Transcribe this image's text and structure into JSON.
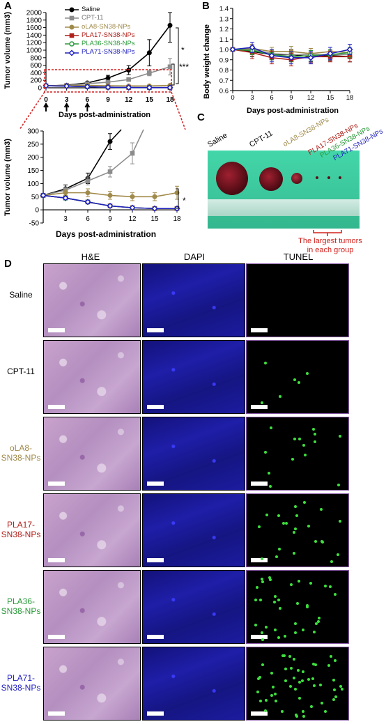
{
  "panels": {
    "A": "A",
    "B": "B",
    "C": "C",
    "D": "D"
  },
  "panelA": {
    "legend": [
      {
        "name": "Saline",
        "color": "#000000",
        "marker": "circle"
      },
      {
        "name": "CPT-11",
        "color": "#8c8c8c",
        "marker": "square"
      },
      {
        "name": "oLA8-SN38-NPs",
        "color": "#a08a4a",
        "marker": "circle"
      },
      {
        "name": "PLA17-SN38-NPs",
        "color": "#b0201a",
        "marker": "square"
      },
      {
        "name": "PLA36-SN38-NPs",
        "color": "#2a9a3a",
        "marker": "circle-open"
      },
      {
        "name": "PLA71-SN38-NPs",
        "color": "#2020c0",
        "marker": "diamond-open"
      }
    ],
    "ylabel": "Tumor volume (mm3)",
    "xlabel": "Days post-administration",
    "sig_top": "*",
    "sig_mid": "***",
    "sig_bottom": "*"
  },
  "panelB": {
    "ylabel": "Body weight change",
    "xlabel": "Days post-administration"
  },
  "panelC": {
    "labels": [
      "Saline",
      "CPT-11",
      "oLA8-SN38-NPs",
      "PLA17-SN38-NPs",
      "PLA36-SN38-NPs",
      "PLA71-SN38-NPs"
    ],
    "label_colors": [
      "#000000",
      "#000000",
      "#a08a4a",
      "#b0201a",
      "#2a9a3a",
      "#2020c0"
    ],
    "caption_line1": "The largest tumors",
    "caption_line2": "in each group",
    "caption_color": "#d0201a"
  },
  "panelD": {
    "columns": [
      "H&E",
      "DAPI",
      "TUNEL"
    ],
    "rows": [
      {
        "line1": "Saline",
        "line2": "",
        "color": "#000000"
      },
      {
        "line1": "CPT-11",
        "line2": "",
        "color": "#000000"
      },
      {
        "line1": "oLA8-",
        "line2": "SN38-NPs",
        "color": "#a08a4a"
      },
      {
        "line1": "PLA17-",
        "line2": "SN38-NPs",
        "color": "#b0201a"
      },
      {
        "line1": "PLA36-",
        "line2": "SN38-NPs",
        "color": "#2a9a3a"
      },
      {
        "line1": "PLA71-",
        "line2": "SN38-NPs",
        "color": "#2020c0"
      }
    ]
  },
  "chart_data": [
    {
      "type": "line",
      "title": "",
      "xlabel": "Days post-administration",
      "ylabel": "Tumor volume (mm3)",
      "x": [
        0,
        3,
        6,
        9,
        12,
        15,
        18
      ],
      "xlim": [
        0,
        18
      ],
      "ylim": [
        0,
        2000
      ],
      "yticks": [
        0,
        200,
        400,
        600,
        800,
        1000,
        1200,
        1400,
        1600,
        1800,
        2000
      ],
      "xticks": [
        0,
        3,
        6,
        9,
        12,
        15,
        18
      ],
      "series": [
        {
          "name": "Saline",
          "values": [
            50,
            70,
            130,
            260,
            470,
            930,
            1660
          ],
          "err": [
            5,
            10,
            30,
            70,
            120,
            350,
            450
          ],
          "color": "#000000"
        },
        {
          "name": "CPT-11",
          "values": [
            50,
            65,
            110,
            150,
            220,
            390,
            560
          ],
          "err": [
            5,
            10,
            20,
            30,
            40,
            70,
            220
          ],
          "color": "#8c8c8c"
        },
        {
          "name": "oLA8-SN38-NPs",
          "values": [
            55,
            65,
            65,
            55,
            50,
            50,
            65
          ],
          "err": [
            5,
            8,
            10,
            10,
            10,
            15,
            25
          ],
          "color": "#a08a4a"
        },
        {
          "name": "PLA17-SN38-NPs",
          "values": [
            55,
            45,
            30,
            15,
            8,
            5,
            5
          ],
          "err": [
            5,
            5,
            5,
            5,
            3,
            2,
            2
          ],
          "color": "#b0201a"
        },
        {
          "name": "PLA36-SN38-NPs",
          "values": [
            55,
            45,
            30,
            15,
            8,
            5,
            5
          ],
          "err": [
            5,
            5,
            5,
            5,
            3,
            2,
            2
          ],
          "color": "#2a9a3a"
        },
        {
          "name": "PLA71-SN38-NPs",
          "values": [
            55,
            45,
            30,
            15,
            8,
            5,
            5
          ],
          "err": [
            5,
            5,
            5,
            5,
            3,
            2,
            2
          ],
          "color": "#2020c0"
        }
      ]
    },
    {
      "type": "line",
      "title": "",
      "xlabel": "Days post-administration",
      "ylabel": "Tumor volume (mm3)",
      "x": [
        0,
        3,
        6,
        9,
        12,
        15,
        18
      ],
      "xlim": [
        0,
        18
      ],
      "ylim": [
        -50,
        300
      ],
      "yticks": [
        -50,
        0,
        50,
        100,
        150,
        200,
        250,
        300
      ],
      "xticks": [
        3,
        6,
        9,
        12,
        15,
        18
      ],
      "series": [
        {
          "name": "Saline",
          "values": [
            55,
            80,
            120,
            260,
            null,
            null,
            null
          ],
          "err": [
            5,
            15,
            20,
            30,
            0,
            0,
            0
          ],
          "color": "#000000"
        },
        {
          "name": "CPT-11",
          "values": [
            55,
            75,
            110,
            145,
            215,
            null,
            null
          ],
          "err": [
            5,
            10,
            15,
            20,
            40,
            0,
            0
          ],
          "color": "#8c8c8c"
        },
        {
          "name": "oLA8-SN38-NPs",
          "values": [
            55,
            65,
            65,
            55,
            50,
            50,
            65
          ],
          "err": [
            5,
            10,
            15,
            15,
            15,
            15,
            25
          ],
          "color": "#a08a4a"
        },
        {
          "name": "PLA17-SN38-NPs",
          "values": [
            55,
            45,
            30,
            15,
            8,
            5,
            5
          ],
          "err": [
            5,
            5,
            5,
            5,
            3,
            2,
            2
          ],
          "color": "#b0201a"
        },
        {
          "name": "PLA36-SN38-NPs",
          "values": [
            55,
            45,
            30,
            15,
            8,
            5,
            5
          ],
          "err": [
            5,
            5,
            5,
            5,
            3,
            2,
            2
          ],
          "color": "#2a9a3a"
        },
        {
          "name": "PLA71-SN38-NPs",
          "values": [
            55,
            45,
            30,
            15,
            8,
            5,
            5
          ],
          "err": [
            5,
            5,
            5,
            5,
            3,
            2,
            2
          ],
          "color": "#2020c0"
        }
      ]
    },
    {
      "type": "line",
      "title": "",
      "xlabel": "Days post-administration",
      "ylabel": "Body weight change",
      "x": [
        0,
        3,
        6,
        9,
        12,
        15,
        18
      ],
      "xlim": [
        0,
        18
      ],
      "ylim": [
        0.6,
        1.4
      ],
      "yticks": [
        0.6,
        0.7,
        0.8,
        0.9,
        1.0,
        1.1,
        1.2,
        1.3,
        1.4
      ],
      "xticks": [
        0,
        3,
        6,
        9,
        12,
        15,
        18
      ],
      "series": [
        {
          "name": "Saline",
          "values": [
            1.0,
            0.98,
            0.95,
            0.95,
            0.93,
            0.94,
            0.93
          ],
          "err": [
            0.01,
            0.05,
            0.05,
            0.05,
            0.05,
            0.05,
            0.05
          ],
          "color": "#000000"
        },
        {
          "name": "CPT-11",
          "values": [
            1.0,
            1.0,
            0.96,
            0.95,
            0.95,
            0.95,
            0.95
          ],
          "err": [
            0.01,
            0.04,
            0.04,
            0.04,
            0.04,
            0.04,
            0.04
          ],
          "color": "#8c8c8c"
        },
        {
          "name": "oLA8-SN38-NPs",
          "values": [
            1.0,
            1.01,
            0.98,
            0.98,
            0.96,
            0.98,
            0.97
          ],
          "err": [
            0.01,
            0.04,
            0.04,
            0.05,
            0.05,
            0.04,
            0.05
          ],
          "color": "#a08a4a"
        },
        {
          "name": "PLA17-SN38-NPs",
          "values": [
            1.0,
            0.97,
            0.92,
            0.9,
            0.93,
            0.93,
            0.93
          ],
          "err": [
            0.01,
            0.06,
            0.06,
            0.06,
            0.06,
            0.05,
            0.05
          ],
          "color": "#b0201a"
        },
        {
          "name": "PLA36-SN38-NPs",
          "values": [
            1.0,
            0.99,
            0.95,
            0.93,
            0.94,
            0.95,
            0.97
          ],
          "err": [
            0.01,
            0.04,
            0.05,
            0.05,
            0.05,
            0.05,
            0.05
          ],
          "color": "#2a9a3a"
        },
        {
          "name": "PLA71-SN38-NPs",
          "values": [
            1.0,
            1.02,
            0.94,
            0.92,
            0.92,
            0.96,
            1.0
          ],
          "err": [
            0.01,
            0.05,
            0.06,
            0.06,
            0.06,
            0.06,
            0.05
          ],
          "color": "#2020c0"
        }
      ]
    }
  ]
}
